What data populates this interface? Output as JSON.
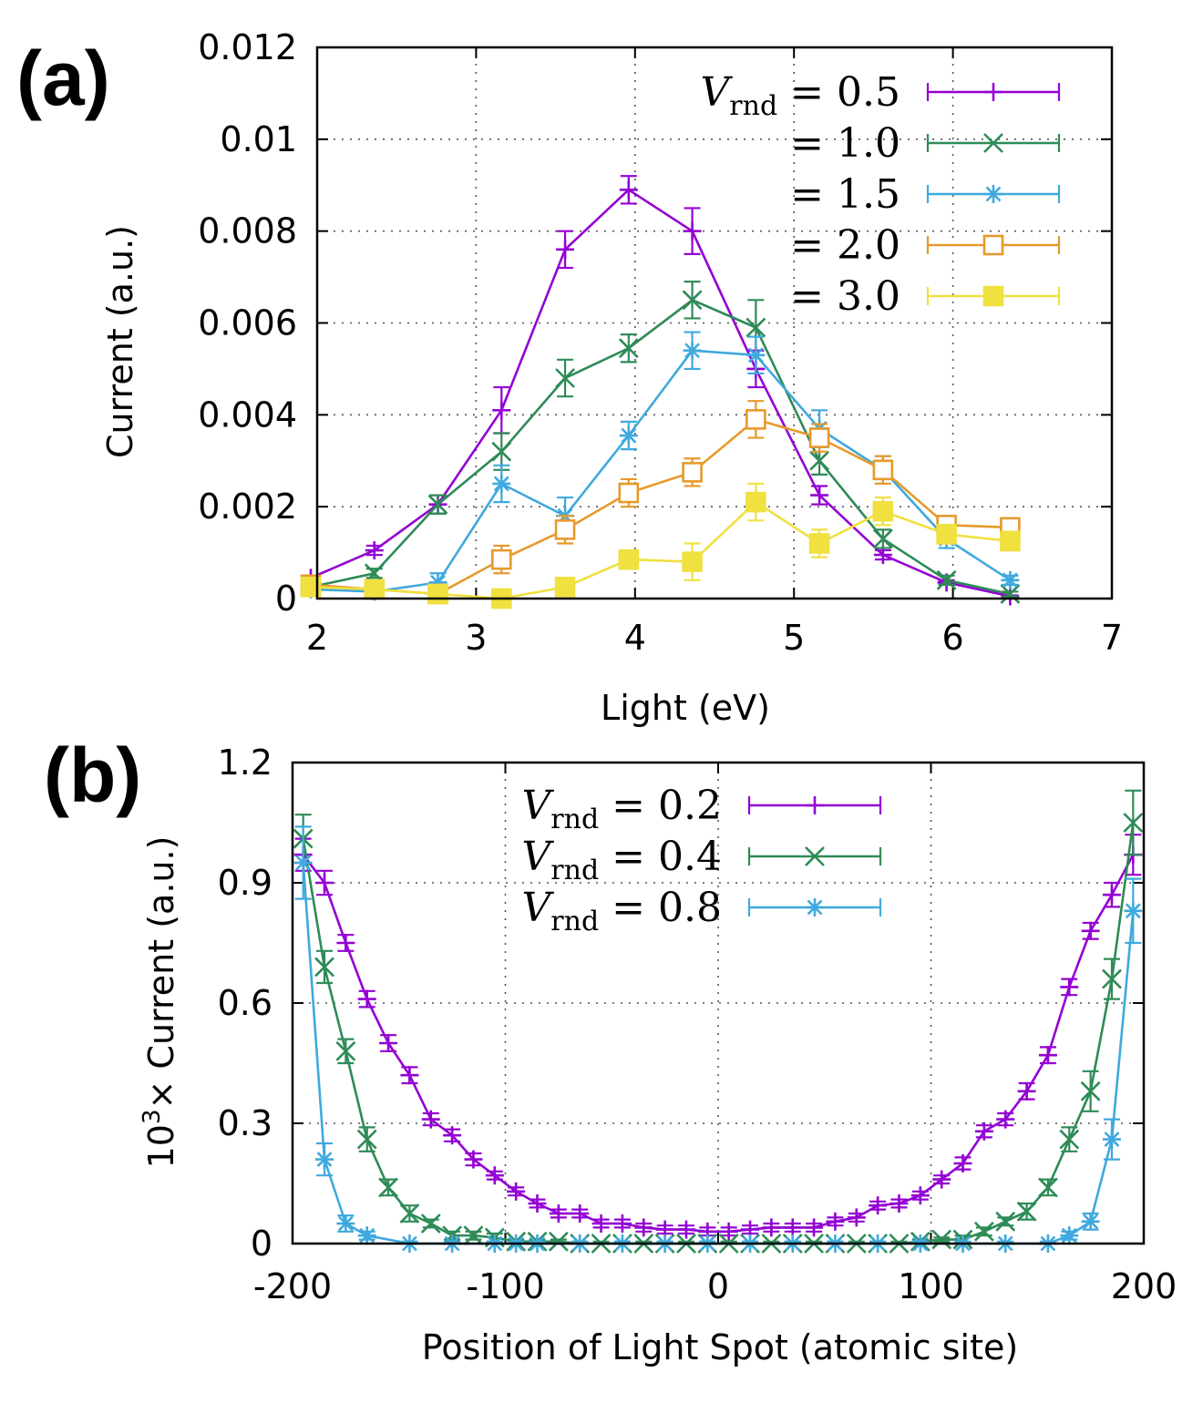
{
  "chart_data": [
    {
      "panel": "(a)",
      "type": "line",
      "xlabel": "Light (eV)",
      "ylabel": "Current (a.u.)",
      "xlim": [
        2,
        7
      ],
      "ylim": [
        0,
        0.012
      ],
      "xticks": [
        2,
        3,
        4,
        5,
        6,
        7
      ],
      "xtick_labels": [
        "2",
        "3",
        "4",
        "5",
        "6",
        "7"
      ],
      "yticks": [
        0,
        0.002,
        0.004,
        0.006,
        0.008,
        0.01,
        0.012
      ],
      "ytick_labels": [
        "0",
        "0.002",
        "0.004",
        "0.006",
        "0.008",
        "0.01",
        "0.012"
      ],
      "grid": true,
      "legend_position": "top-right",
      "x": [
        1.96,
        2.36,
        2.76,
        3.16,
        3.56,
        3.96,
        4.36,
        4.76,
        5.16,
        5.56,
        5.96,
        6.36
      ],
      "series": [
        {
          "name": "V_rnd = 0.5",
          "legend_var": "V",
          "legend_sub": "rnd",
          "legend_rest": " = 0.5",
          "color": "#9400d3",
          "marker": "plus",
          "values": [
            0.00045,
            0.00105,
            0.00205,
            0.0041,
            0.0076,
            0.0089,
            0.008,
            0.005,
            0.00225,
            0.00095,
            0.00035,
            5e-05
          ],
          "errors": [
            5e-05,
            0.0001,
            0.0002,
            0.0005,
            0.0004,
            0.0003,
            0.0005,
            0.0004,
            0.0002,
            0.0001,
            5e-05,
            2e-05
          ]
        },
        {
          "name": "= 1.0",
          "legend_var": "",
          "legend_sub": "",
          "legend_rest": "= 1.0",
          "color": "#2e8b57",
          "marker": "cross",
          "values": [
            0.00025,
            0.00055,
            0.00205,
            0.0032,
            0.0048,
            0.00545,
            0.0065,
            0.0059,
            0.003,
            0.0013,
            0.0004,
            0.0001
          ],
          "errors": [
            5e-05,
            0.0001,
            0.0002,
            0.0004,
            0.0004,
            0.0003,
            0.0004,
            0.0006,
            0.0003,
            0.0002,
            0.0001,
            5e-05
          ]
        },
        {
          "name": "= 1.5",
          "legend_var": "",
          "legend_sub": "",
          "legend_rest": "= 1.5",
          "color": "#3fa9dd",
          "marker": "star",
          "values": [
            0.0002,
            0.00015,
            0.00035,
            0.0025,
            0.0018,
            0.00355,
            0.0054,
            0.0053,
            0.0037,
            0.0028,
            0.0013,
            0.0004
          ],
          "errors": [
            5e-05,
            0.0001,
            0.0002,
            0.0004,
            0.0004,
            0.0003,
            0.0004,
            0.0004,
            0.0004,
            0.0003,
            0.0002,
            0.0001
          ]
        },
        {
          "name": "= 2.0",
          "legend_var": "",
          "legend_sub": "",
          "legend_rest": "= 2.0",
          "color": "#e69a2c",
          "marker": "square-open",
          "values": [
            0.0003,
            0.0002,
            0.0001,
            0.00085,
            0.0015,
            0.0023,
            0.00275,
            0.0039,
            0.0035,
            0.0028,
            0.0016,
            0.00155
          ],
          "errors": [
            5e-05,
            0.0001,
            0.0001,
            0.0003,
            0.0003,
            0.0003,
            0.0003,
            0.0004,
            0.0003,
            0.0003,
            0.0002,
            0.0001
          ]
        },
        {
          "name": "= 3.0",
          "legend_var": "",
          "legend_sub": "",
          "legend_rest": "= 3.0",
          "color": "#f0e040",
          "marker": "square-filled",
          "values": [
            0.00025,
            0.0002,
            0.0001,
            0.0,
            0.00025,
            0.00085,
            0.0008,
            0.0021,
            0.0012,
            0.0019,
            0.0014,
            0.00125
          ],
          "errors": [
            5e-05,
            0.0001,
            0.0001,
            5e-05,
            0.0001,
            0.0002,
            0.0004,
            0.0004,
            0.0003,
            0.0003,
            0.0002,
            0.0002
          ]
        }
      ]
    },
    {
      "panel": "(b)",
      "type": "line",
      "xlabel": "Position of Light Spot (atomic site)",
      "ylabel_prefix": "10",
      "ylabel_sup": "3",
      "ylabel_rest": "× Current (a.u.)",
      "xlim": [
        -200,
        200
      ],
      "ylim": [
        0,
        1.2
      ],
      "xticks": [
        -200,
        -100,
        0,
        100,
        200
      ],
      "xtick_labels": [
        "-200",
        "-100",
        "0",
        "100",
        "200"
      ],
      "yticks": [
        0,
        0.3,
        0.6,
        0.9,
        1.2
      ],
      "ytick_labels": [
        "0",
        "0.3",
        "0.6",
        "0.9",
        "1.2"
      ],
      "grid": true,
      "legend_position": "top-center",
      "series": [
        {
          "name": "V_rnd = 0.2",
          "legend_var": "V",
          "legend_sub": "rnd",
          "legend_rest": " = 0.2",
          "color": "#9400d3",
          "marker": "plus",
          "x": [
            -195,
            -185,
            -175,
            -165,
            -155,
            -145,
            -135,
            -125,
            -115,
            -105,
            -95,
            -85,
            -75,
            -65,
            -55,
            -45,
            -35,
            -25,
            -15,
            -5,
            5,
            15,
            25,
            35,
            45,
            55,
            65,
            75,
            85,
            95,
            105,
            115,
            125,
            135,
            145,
            155,
            165,
            175,
            185,
            195
          ],
          "values": [
            0.97,
            0.9,
            0.75,
            0.61,
            0.5,
            0.42,
            0.31,
            0.27,
            0.21,
            0.17,
            0.13,
            0.1,
            0.075,
            0.075,
            0.05,
            0.05,
            0.04,
            0.035,
            0.035,
            0.03,
            0.03,
            0.035,
            0.04,
            0.04,
            0.04,
            0.055,
            0.065,
            0.095,
            0.1,
            0.12,
            0.16,
            0.2,
            0.28,
            0.31,
            0.38,
            0.47,
            0.64,
            0.78,
            0.87,
            0.97
          ],
          "errors": [
            0.04,
            0.03,
            0.02,
            0.02,
            0.02,
            0.02,
            0.015,
            0.015,
            0.015,
            0.01,
            0.01,
            0.01,
            0.01,
            0.01,
            0.01,
            0.01,
            0.01,
            0.01,
            0.01,
            0.01,
            0.01,
            0.01,
            0.01,
            0.01,
            0.01,
            0.01,
            0.01,
            0.01,
            0.01,
            0.01,
            0.01,
            0.015,
            0.015,
            0.015,
            0.02,
            0.02,
            0.02,
            0.02,
            0.03,
            0.05
          ]
        },
        {
          "name": "V_rnd = 0.4",
          "legend_var": "V",
          "legend_sub": "rnd",
          "legend_rest": " = 0.4",
          "color": "#2e8b57",
          "marker": "cross",
          "x": [
            -195,
            -185,
            -175,
            -165,
            -155,
            -145,
            -135,
            -125,
            -115,
            -105,
            -95,
            -85,
            -75,
            -65,
            -55,
            -45,
            -35,
            -25,
            -15,
            -5,
            5,
            15,
            25,
            35,
            45,
            55,
            65,
            75,
            85,
            95,
            105,
            115,
            125,
            135,
            145,
            155,
            165,
            175,
            185,
            195
          ],
          "values": [
            1.01,
            0.69,
            0.48,
            0.26,
            0.14,
            0.075,
            0.05,
            0.02,
            0.02,
            0.015,
            0.005,
            0.005,
            0.005,
            0.0,
            0.0,
            0.0,
            0.0,
            0.0,
            0.0,
            0.0,
            0.0,
            0.0,
            0.0,
            0.0,
            0.0,
            0.0,
            0.0,
            0.0,
            0.0,
            0.005,
            0.01,
            0.01,
            0.03,
            0.055,
            0.08,
            0.14,
            0.26,
            0.38,
            0.66,
            1.05
          ],
          "errors": [
            0.06,
            0.04,
            0.03,
            0.03,
            0.02,
            0.02,
            0.01,
            0.01,
            0.01,
            0.01,
            0.005,
            0.005,
            0.005,
            0.005,
            0.005,
            0.005,
            0.005,
            0.005,
            0.005,
            0.005,
            0.005,
            0.005,
            0.005,
            0.005,
            0.005,
            0.005,
            0.005,
            0.005,
            0.005,
            0.005,
            0.005,
            0.01,
            0.01,
            0.01,
            0.02,
            0.02,
            0.03,
            0.05,
            0.05,
            0.08
          ]
        },
        {
          "name": "V_rnd = 0.8",
          "legend_var": "V",
          "legend_sub": "rnd",
          "legend_rest": " = 0.8",
          "color": "#3fa9dd",
          "marker": "star",
          "x": [
            -195,
            -185,
            -175,
            -165,
            -145,
            -125,
            -105,
            -95,
            -85,
            -65,
            -45,
            -25,
            -5,
            15,
            35,
            55,
            75,
            95,
            115,
            135,
            155,
            165,
            175,
            185,
            195
          ],
          "values": [
            0.95,
            0.21,
            0.05,
            0.02,
            0.0,
            0.0,
            0.0,
            0.0,
            0.0,
            0.0,
            0.0,
            0.0,
            0.0,
            0.0,
            0.0,
            0.0,
            0.0,
            0.0,
            0.0,
            0.0,
            0.0,
            0.02,
            0.055,
            0.26,
            0.83
          ],
          "errors": [
            0.09,
            0.04,
            0.02,
            0.01,
            0.005,
            0.005,
            0.005,
            0.005,
            0.005,
            0.005,
            0.005,
            0.005,
            0.005,
            0.005,
            0.005,
            0.005,
            0.005,
            0.005,
            0.005,
            0.005,
            0.005,
            0.01,
            0.02,
            0.05,
            0.08
          ]
        }
      ]
    }
  ]
}
